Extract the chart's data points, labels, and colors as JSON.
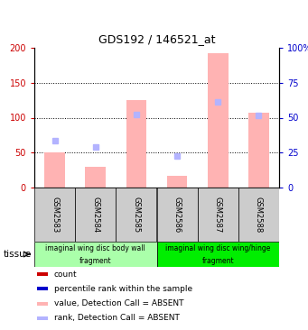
{
  "title": "GDS192 / 146521_at",
  "samples": [
    "GSM2583",
    "GSM2584",
    "GSM2585",
    "GSM2586",
    "GSM2587",
    "GSM2588"
  ],
  "absent_bar_values": [
    50,
    30,
    125,
    17,
    192,
    107
  ],
  "absent_rank_dots": [
    67,
    58,
    105,
    45,
    123,
    103
  ],
  "ylim_left": [
    0,
    200
  ],
  "ylim_right": [
    0,
    100
  ],
  "yticks_left": [
    0,
    50,
    100,
    150,
    200
  ],
  "yticks_right": [
    0,
    25,
    50,
    75,
    100
  ],
  "ytick_labels_right": [
    "0",
    "25",
    "50",
    "75",
    "100%"
  ],
  "ytick_labels_left": [
    "0",
    "50",
    "100",
    "150",
    "200"
  ],
  "absent_bar_color": "#ffb3b3",
  "absent_rank_color": "#b3b3ff",
  "count_color": "#cc0000",
  "rank_color": "#0000cc",
  "tissue_groups": [
    {
      "label": "imaginal wing disc body wall\nfragment",
      "samples_count": 3,
      "color": "#aaffaa"
    },
    {
      "label": "imaginal wing disc wing/hinge\nfragment",
      "samples_count": 3,
      "color": "#00ee00"
    }
  ],
  "tissue_label": "tissue",
  "background_color": "#ffffff",
  "legend_items": [
    {
      "color": "#cc0000",
      "label": "count"
    },
    {
      "color": "#0000cc",
      "label": "percentile rank within the sample"
    },
    {
      "color": "#ffb3b3",
      "label": "value, Detection Call = ABSENT"
    },
    {
      "color": "#b3b3ff",
      "label": "rank, Detection Call = ABSENT"
    }
  ]
}
